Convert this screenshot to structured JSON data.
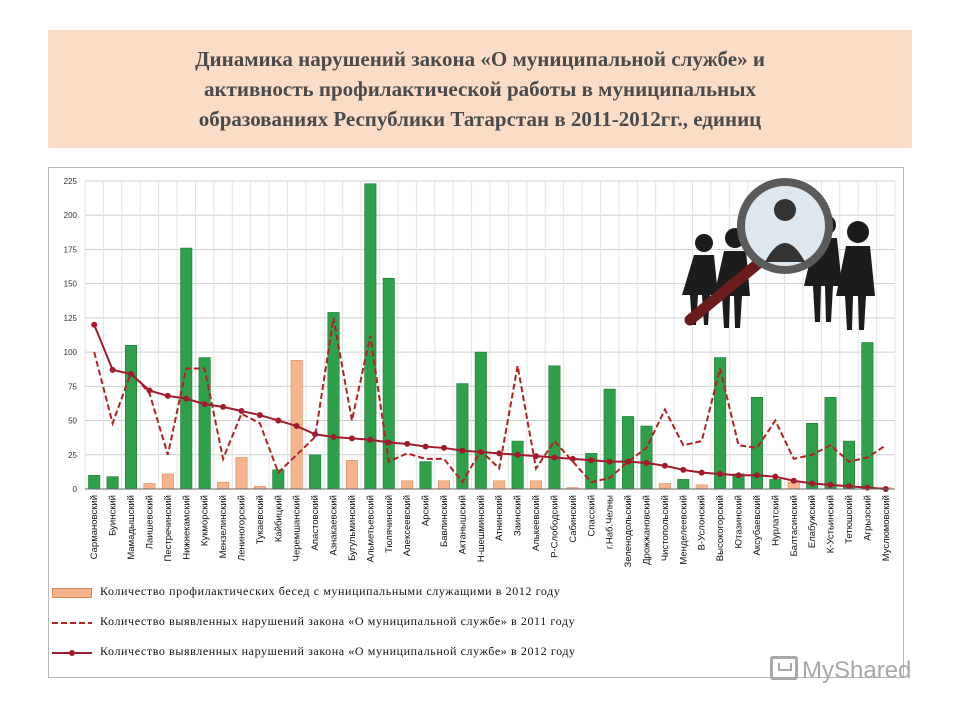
{
  "title": {
    "line1": "Динамика нарушений закона «О муниципальной службе» и",
    "line2": "активность профилактической работы в муниципальных",
    "line3": "образованиях Республики Татарстан в 2011-2012гг., единиц"
  },
  "legend": [
    {
      "label": "Количество профилактических бесед с муниципальными служащими в 2012 году"
    },
    {
      "label": "Количество выявленных нарушений закона «О муниципальной службе» в 2011 году"
    },
    {
      "label": "Количество выявленных нарушений закона «О муниципальной службе» в 2012 году"
    }
  ],
  "watermark": "MyShared",
  "colors": {
    "bar_green": "#2ea04a",
    "bar_orange": "#f6b48e",
    "line_2011": "#b22222",
    "line_2012": "#a01c2c",
    "grid": "#cfcfcf"
  },
  "chart_data": {
    "type": "bar",
    "title": "",
    "xlabel": "",
    "ylabel": "",
    "ylim": [
      0,
      225
    ],
    "yticks": [
      0,
      25,
      50,
      75,
      100,
      125,
      150,
      175,
      200,
      225
    ],
    "grid": true,
    "legend_position": "bottom-left",
    "categories": [
      "Сармановский",
      "Буинский",
      "Мамадышский",
      "Лаишевский",
      "Пестречинский",
      "Нижнекамский",
      "Кукморский",
      "Мензелинский",
      "Лениногорский",
      "Тукаевский",
      "Кайбицкий",
      "Черемшанский",
      "Апастовский",
      "Азнакаевский",
      "Бугульминский",
      "Альметьевский",
      "Тюлячинский",
      "Алексеевский",
      "Арский",
      "Бавлинский",
      "Актанышский",
      "Н-шешминский",
      "Атнинский",
      "Заинский",
      "Алькеевский",
      "Р-Слободский",
      "Сабинский",
      "Спасский",
      "г.Наб.Челны",
      "Зеленодольский",
      "Дрожжановский",
      "Чистопольский",
      "Менделеевский",
      "В-Услонский",
      "Высокогорский",
      "Ютазинский",
      "Аксубаевский",
      "Нурлатский",
      "Балтасинский",
      "Елабужский",
      "К-Устьинский",
      "Тетюшский",
      "Агрызский",
      "Муслюмовский"
    ],
    "series": [
      {
        "name": "Количество профилактических бесед с муниципальными служащими в 2012 году",
        "type": "bar",
        "values": [
          10,
          9,
          105,
          4,
          11,
          176,
          96,
          5,
          23,
          2,
          14,
          94,
          25,
          129,
          21,
          223,
          154,
          6,
          20,
          6,
          77,
          100,
          6,
          35,
          6,
          90,
          1,
          26,
          73,
          53,
          46,
          4,
          7,
          3,
          96,
          11,
          67,
          7,
          5,
          48,
          67,
          35,
          107,
          1
        ],
        "colors": [
          "g",
          "g",
          "g",
          "o",
          "o",
          "g",
          "g",
          "o",
          "o",
          "o",
          "g",
          "o",
          "g",
          "g",
          "o",
          "g",
          "g",
          "o",
          "g",
          "o",
          "g",
          "g",
          "o",
          "g",
          "o",
          "g",
          "o",
          "g",
          "g",
          "g",
          "g",
          "o",
          "g",
          "o",
          "g",
          "g",
          "g",
          "g",
          "o",
          "g",
          "g",
          "g",
          "g",
          "o"
        ]
      },
      {
        "name": "Количество выявленных нарушений закона «О муниципальной службе» в 2011 году",
        "type": "line",
        "values": [
          100,
          48,
          85,
          70,
          25,
          88,
          88,
          22,
          55,
          48,
          12,
          25,
          38,
          125,
          50,
          112,
          20,
          26,
          22,
          22,
          5,
          28,
          15,
          90,
          15,
          35,
          20,
          5,
          8,
          20,
          30,
          58,
          32,
          35,
          88,
          32,
          30,
          50,
          22,
          25,
          32,
          20,
          23,
          32
        ]
      },
      {
        "name": "Количество выявленных нарушений закона «О муниципальной службе» в 2012 году",
        "type": "line",
        "values": [
          120,
          87,
          84,
          72,
          68,
          66,
          62,
          60,
          57,
          54,
          50,
          46,
          40,
          38,
          37,
          36,
          34,
          33,
          31,
          30,
          28,
          27,
          26,
          25,
          24,
          23,
          22,
          21,
          20,
          20,
          19,
          17,
          14,
          12,
          11,
          10,
          10,
          9,
          6,
          4,
          3,
          2,
          1,
          0
        ]
      }
    ]
  }
}
